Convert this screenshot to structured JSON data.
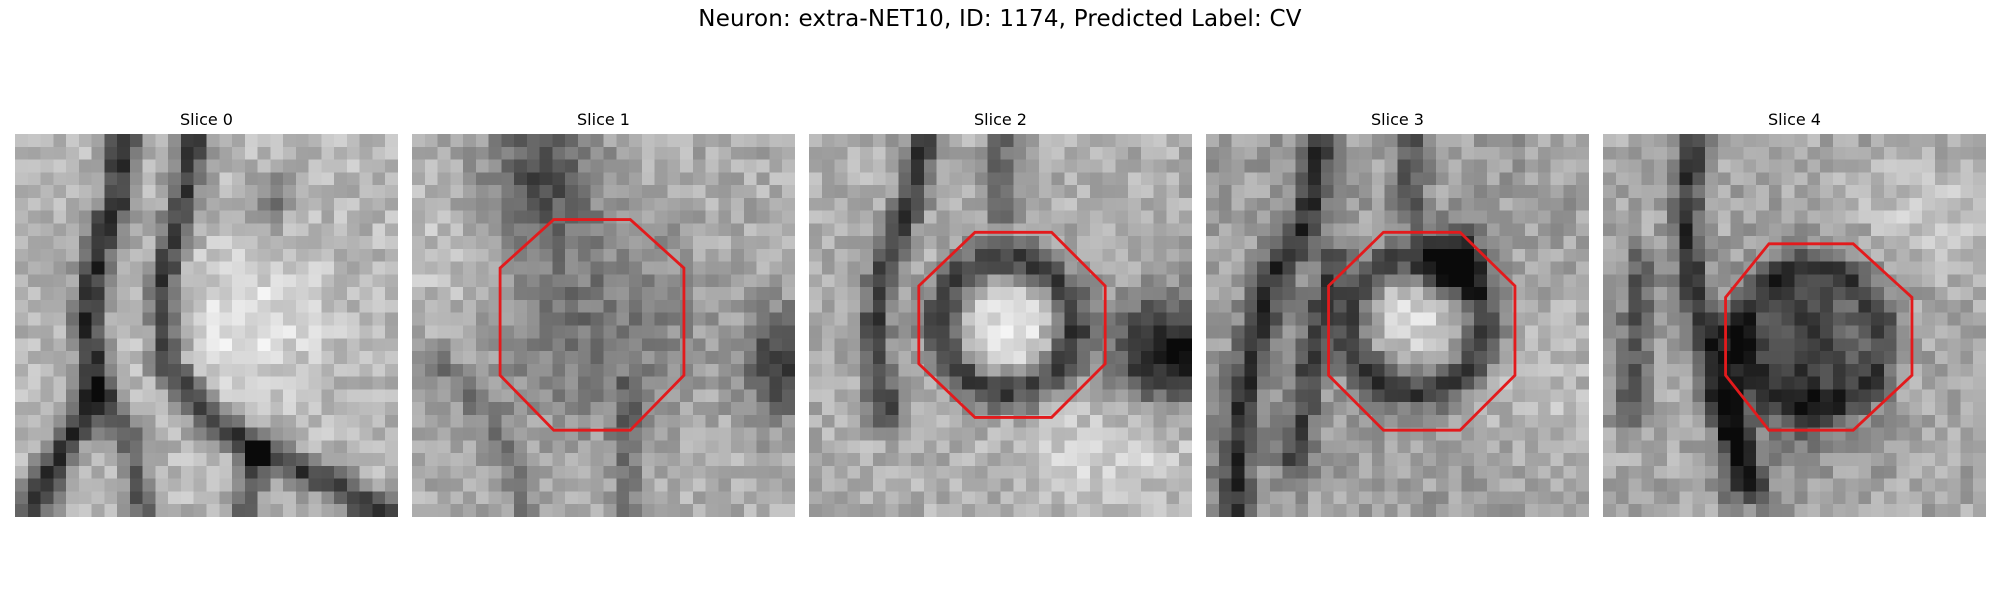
{
  "figure": {
    "title": "Neuron: extra-NET10, ID: 1174, Predicted Label: CV"
  },
  "colors": {
    "outline": "#e31a1c",
    "background": "#ffffff",
    "colormap": "grayscale"
  },
  "panels": [
    {
      "title": "Slice 0",
      "outline": false
    },
    {
      "title": "Slice 1",
      "outline": true
    },
    {
      "title": "Slice 2",
      "outline": true
    },
    {
      "title": "Slice 3",
      "outline": true
    },
    {
      "title": "Slice 4",
      "outline": true
    }
  ]
}
